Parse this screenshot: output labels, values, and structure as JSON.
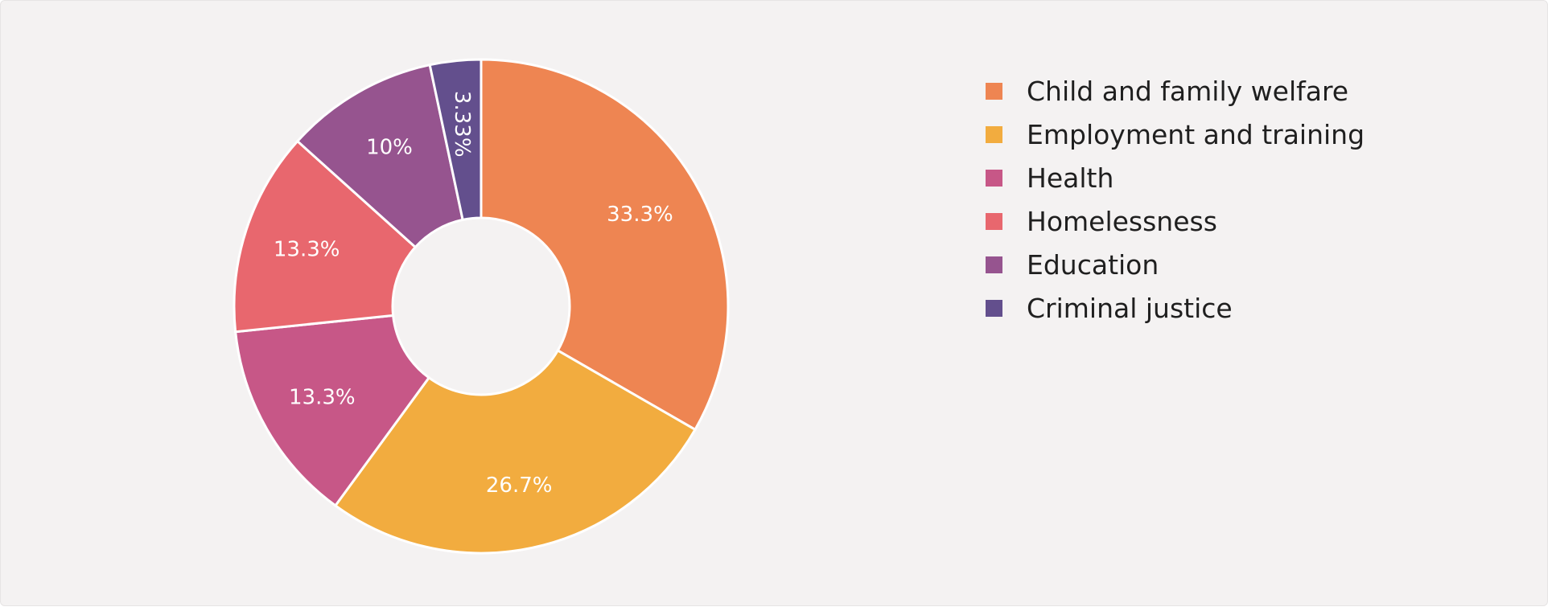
{
  "chart_data": {
    "type": "pie",
    "title": "",
    "categories": [
      "Child and family welfare",
      "Employment and training",
      "Health",
      "Homelessness",
      "Education",
      "Criminal justice"
    ],
    "values": [
      33.3,
      26.7,
      13.3,
      13.3,
      10,
      3.33
    ],
    "labels": [
      "33.3%",
      "26.7%",
      "13.3%",
      "13.3%",
      "10%",
      "3.33%"
    ],
    "colors": [
      "#ee8552",
      "#f2ac3f",
      "#c75787",
      "#e8676e",
      "#96548f",
      "#634f8d"
    ],
    "donut": true,
    "legend_position": "right"
  }
}
